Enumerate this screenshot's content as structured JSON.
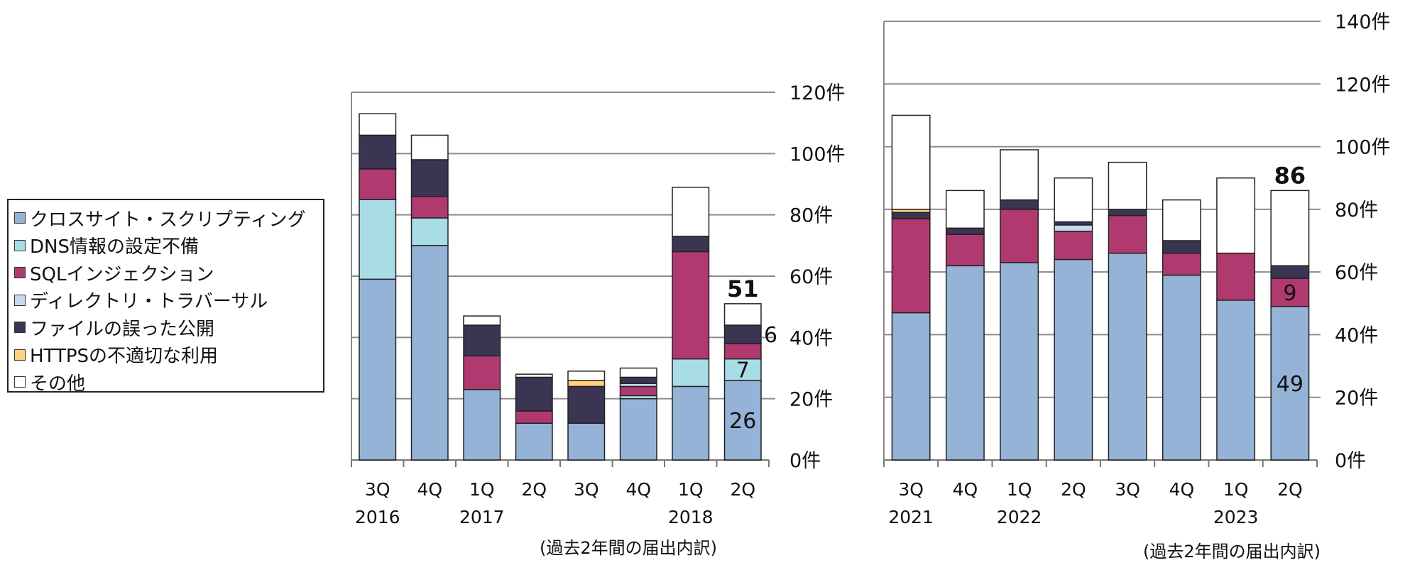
{
  "legend": {
    "items": [
      {
        "label": "クロスサイト・スクリプティング",
        "color": "#95b3d7"
      },
      {
        "label": "DNS情報の設定不備",
        "color": "#a9dde5"
      },
      {
        "label": "SQLインジェクション",
        "color": "#b03a70"
      },
      {
        "label": "ディレクトリ・トラバーサル",
        "color": "#c6d9f1"
      },
      {
        "label": "ファイルの誤った公開",
        "color": "#3b3452"
      },
      {
        "label": "HTTPSの不適切な利用",
        "color": "#ffd27f"
      },
      {
        "label": "その他",
        "color": "#ffffff"
      }
    ]
  },
  "chart_data": [
    {
      "type": "bar",
      "stacked": true,
      "categories": [
        "3Q",
        "4Q",
        "1Q",
        "2Q",
        "3Q",
        "4Q",
        "1Q",
        "2Q"
      ],
      "years": [
        "2016",
        "",
        "2017",
        "",
        "",
        "",
        "2018",
        ""
      ],
      "ylim": [
        0,
        120
      ],
      "yticks": [
        "0件",
        "20件",
        "40件",
        "60件",
        "80件",
        "100件",
        "120件"
      ],
      "caption": "(過去2年間の届出内訳)",
      "series": [
        {
          "name": "クロスサイト・スクリプティング",
          "values": [
            59,
            70,
            23,
            12,
            12,
            20,
            24,
            26
          ]
        },
        {
          "name": "DNS情報の設定不備",
          "values": [
            26,
            9,
            0,
            0,
            0,
            1,
            9,
            7
          ]
        },
        {
          "name": "SQLインジェクション",
          "values": [
            10,
            7,
            11,
            4,
            0,
            3,
            35,
            5
          ]
        },
        {
          "name": "ディレクトリ・トラバーサル",
          "values": [
            0,
            0,
            0,
            0,
            0,
            1,
            0,
            0
          ]
        },
        {
          "name": "ファイルの誤った公開",
          "values": [
            11,
            12,
            10,
            11,
            12,
            2,
            5,
            6
          ]
        },
        {
          "name": "HTTPSの不適切な利用",
          "values": [
            0,
            0,
            0,
            0,
            2,
            0,
            0,
            0
          ]
        },
        {
          "name": "その他",
          "values": [
            7,
            8,
            3,
            1,
            3,
            3,
            16,
            7
          ]
        }
      ],
      "totals_shown": {
        "7": "51"
      },
      "data_labels": [
        {
          "series": 0,
          "index": 7,
          "text": "26"
        },
        {
          "series": 1,
          "index": 7,
          "text": "7"
        },
        {
          "series": 4,
          "index": 7,
          "text": "6",
          "side": "right"
        }
      ]
    },
    {
      "type": "bar",
      "stacked": true,
      "categories": [
        "3Q",
        "4Q",
        "1Q",
        "2Q",
        "3Q",
        "4Q",
        "1Q",
        "2Q"
      ],
      "years": [
        "2021",
        "",
        "2022",
        "",
        "",
        "",
        "2023",
        ""
      ],
      "ylim": [
        0,
        140
      ],
      "yticks": [
        "0件",
        "20件",
        "40件",
        "60件",
        "80件",
        "100件",
        "120件",
        "140件"
      ],
      "caption": "(過去2年間の届出内訳)",
      "series": [
        {
          "name": "クロスサイト・スクリプティング",
          "values": [
            47,
            62,
            63,
            64,
            66,
            59,
            51,
            49
          ]
        },
        {
          "name": "DNS情報の設定不備",
          "values": [
            0,
            0,
            0,
            0,
            0,
            0,
            0,
            0
          ]
        },
        {
          "name": "SQLインジェクション",
          "values": [
            30,
            10,
            17,
            9,
            12,
            7,
            15,
            9
          ]
        },
        {
          "name": "ディレクトリ・トラバーサル",
          "values": [
            0,
            0,
            0,
            2,
            0,
            0,
            0,
            0
          ]
        },
        {
          "name": "ファイルの誤った公開",
          "values": [
            2,
            2,
            3,
            1,
            2,
            4,
            0,
            4
          ]
        },
        {
          "name": "HTTPSの不適切な利用",
          "values": [
            1,
            0,
            0,
            0,
            0,
            0,
            0,
            0
          ]
        },
        {
          "name": "その他",
          "values": [
            30,
            12,
            16,
            14,
            15,
            13,
            24,
            24
          ]
        }
      ],
      "totals_shown": {
        "7": "86"
      },
      "data_labels": [
        {
          "series": 0,
          "index": 7,
          "text": "49"
        },
        {
          "series": 2,
          "index": 7,
          "text": "9",
          "color": "#ffffff"
        }
      ]
    }
  ]
}
